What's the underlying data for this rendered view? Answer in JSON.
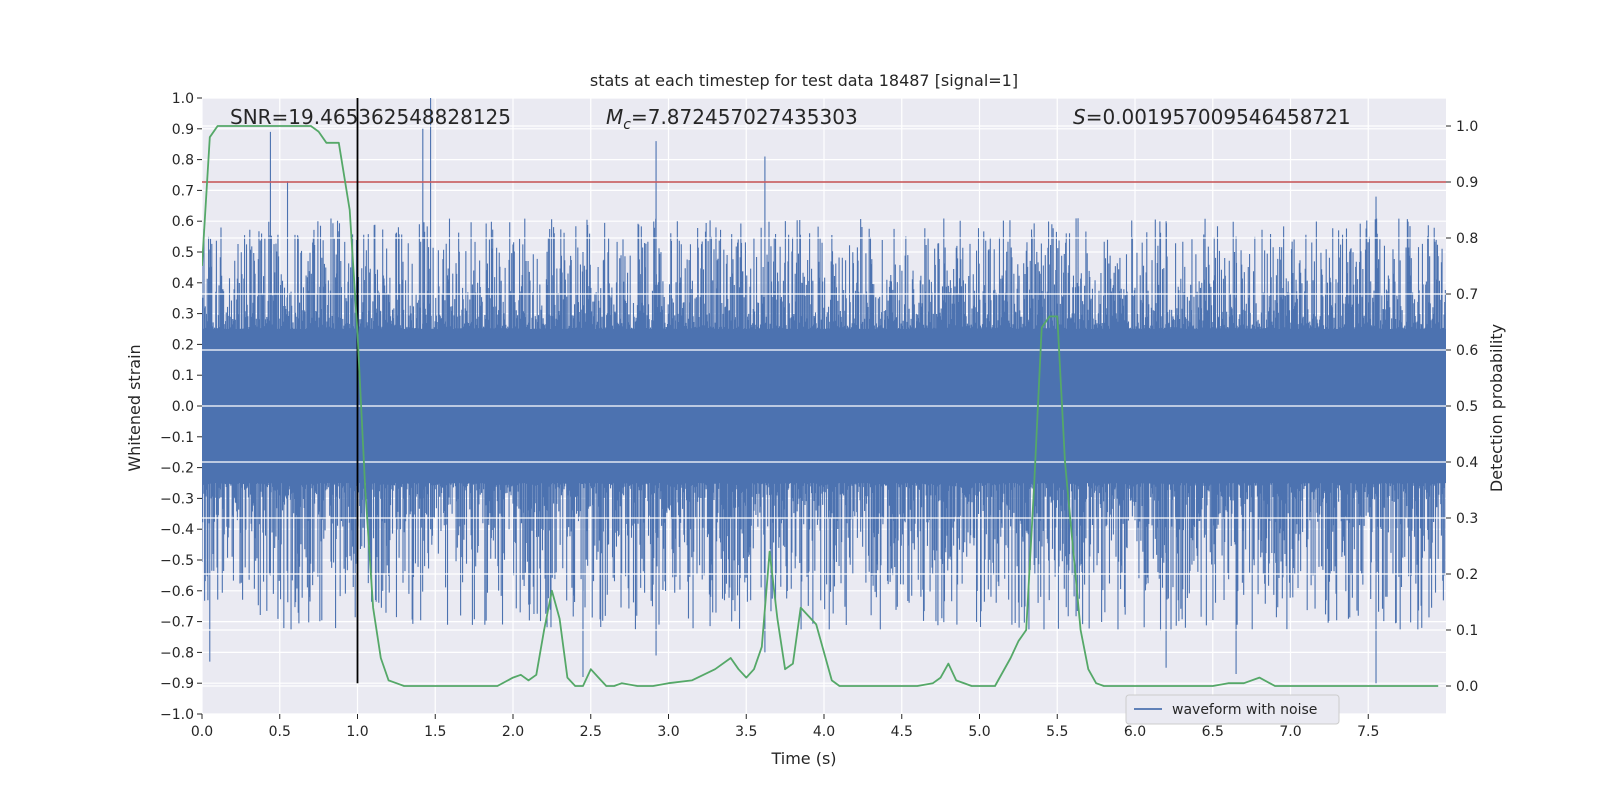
{
  "chart_data": {
    "type": "line",
    "title": "stats at each timestep for test data 18487 [signal=1]",
    "xlabel": "Time (s)",
    "ylabel": "Whitened strain",
    "y2label": "Detection probability",
    "xlim": [
      0.0,
      8.0
    ],
    "ylim": [
      -1.0,
      1.0
    ],
    "y2lim": [
      -0.05,
      1.05
    ],
    "xticks": [
      "0.0",
      "0.5",
      "1.0",
      "1.5",
      "2.0",
      "2.5",
      "3.0",
      "3.5",
      "4.0",
      "4.5",
      "5.0",
      "5.5",
      "6.0",
      "6.5",
      "7.0",
      "7.5"
    ],
    "yticks": [
      "1.0",
      "0.9",
      "0.8",
      "0.7",
      "0.6",
      "0.5",
      "0.4",
      "0.3",
      "0.2",
      "0.1",
      "0.0",
      "−0.1",
      "−0.2",
      "−0.3",
      "−0.4",
      "−0.5",
      "−0.6",
      "−0.7",
      "−0.8",
      "−0.9",
      "−1.0"
    ],
    "y2ticks": [
      "1.0",
      "0.9",
      "0.8",
      "0.7",
      "0.6",
      "0.5",
      "0.4",
      "0.3",
      "0.2",
      "0.1",
      "0.0"
    ],
    "grid": true,
    "legend": {
      "position": "lower-center-right",
      "entries": [
        {
          "label": "waveform with noise",
          "color": "#4c72b0"
        }
      ]
    },
    "annotations": {
      "snr": "SNR=19.465362548828125",
      "mc_symbol": "M",
      "mc_sub": "c",
      "mc_value": "=7.872457027435303",
      "s_symbol": "S",
      "s_value": "=0.001957009546458721"
    },
    "threshold": {
      "axis": "right",
      "value": 0.9,
      "color": "#c44e52"
    },
    "merger_marker": {
      "x": 1.0,
      "y_range": [
        -0.9,
        1.0
      ],
      "color": "#000000"
    },
    "series": [
      {
        "name": "waveform with noise",
        "axis": "left",
        "color": "#4c72b0",
        "kind": "noise",
        "x_range": [
          0.0,
          8.0
        ],
        "core_amplitude": 0.25,
        "typical_peak": [
          0.4,
          -0.45
        ],
        "max_peak": 1.0,
        "min_peak": -0.9
      },
      {
        "axis": "right",
        "color": "#55a868",
        "x": [
          0.0,
          0.05,
          0.1,
          0.15,
          0.3,
          0.5,
          0.7,
          0.75,
          0.8,
          0.88,
          0.95,
          1.0,
          1.05,
          1.1,
          1.15,
          1.2,
          1.25,
          1.3,
          1.4,
          1.6,
          1.8,
          1.9,
          2.0,
          2.05,
          2.1,
          2.15,
          2.2,
          2.25,
          2.3,
          2.35,
          2.4,
          2.45,
          2.5,
          2.55,
          2.6,
          2.65,
          2.7,
          2.8,
          2.9,
          3.0,
          3.15,
          3.3,
          3.4,
          3.45,
          3.5,
          3.55,
          3.6,
          3.65,
          3.7,
          3.75,
          3.8,
          3.85,
          3.95,
          4.05,
          4.1,
          4.3,
          4.6,
          4.7,
          4.75,
          4.8,
          4.85,
          4.95,
          5.1,
          5.2,
          5.25,
          5.3,
          5.35,
          5.4,
          5.45,
          5.5,
          5.55,
          5.6,
          5.65,
          5.7,
          5.75,
          5.8,
          6.0,
          6.5,
          6.6,
          6.7,
          6.8,
          6.9,
          7.0,
          7.5,
          7.95
        ],
        "y": [
          0.75,
          0.98,
          1.0,
          1.0,
          1.0,
          1.0,
          1.0,
          0.99,
          0.97,
          0.97,
          0.85,
          0.63,
          0.35,
          0.14,
          0.05,
          0.01,
          0.005,
          0.0,
          0.0,
          0.0,
          0.0,
          0.0,
          0.015,
          0.02,
          0.01,
          0.02,
          0.1,
          0.17,
          0.12,
          0.015,
          0.0,
          0.0,
          0.03,
          0.015,
          0.0,
          0.0,
          0.005,
          0.0,
          0.0,
          0.005,
          0.01,
          0.03,
          0.05,
          0.03,
          0.015,
          0.03,
          0.07,
          0.24,
          0.12,
          0.03,
          0.04,
          0.14,
          0.11,
          0.01,
          0.0,
          0.0,
          0.0,
          0.005,
          0.015,
          0.04,
          0.01,
          0.0,
          0.0,
          0.05,
          0.08,
          0.1,
          0.35,
          0.64,
          0.66,
          0.66,
          0.4,
          0.25,
          0.1,
          0.03,
          0.005,
          0.0,
          0.0,
          0.0,
          0.005,
          0.005,
          0.015,
          0.0,
          0.0,
          0.0,
          0.0
        ]
      }
    ]
  }
}
